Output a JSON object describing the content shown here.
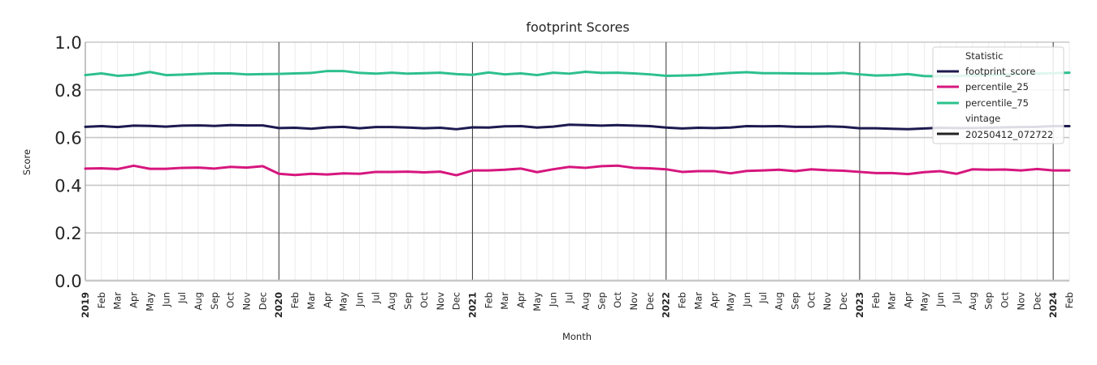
{
  "chart_data": {
    "type": "line",
    "title": "footprint Scores",
    "xlabel": "Month",
    "ylabel": "Score",
    "ylim": [
      0,
      1
    ],
    "yticks": [
      "0.0",
      "0.2",
      "0.4",
      "0.6",
      "0.8",
      "1.0"
    ],
    "grid": true,
    "legend_placement": "top-right",
    "x_tick_labels": [
      "2019",
      "Feb",
      "Mar",
      "Apr",
      "May",
      "Jun",
      "Jul",
      "Aug",
      "Sep",
      "Oct",
      "Nov",
      "Dec",
      "2020",
      "Feb",
      "Mar",
      "Apr",
      "May",
      "Jun",
      "Jul",
      "Aug",
      "Sep",
      "Oct",
      "Nov",
      "Dec",
      "2021",
      "Feb",
      "Mar",
      "Apr",
      "May",
      "Jun",
      "Jul",
      "Aug",
      "Sep",
      "Oct",
      "Nov",
      "Dec",
      "2022",
      "Feb",
      "Mar",
      "Apr",
      "May",
      "Jun",
      "Jul",
      "Aug",
      "Sep",
      "Oct",
      "Nov",
      "Dec",
      "2023",
      "Feb",
      "Mar",
      "Apr",
      "May",
      "Jun",
      "Jul",
      "Aug",
      "Sep",
      "Oct",
      "Nov",
      "Dec",
      "2024",
      "Feb"
    ],
    "year_labels": [
      "2019",
      "2020",
      "2021",
      "2022",
      "2023",
      "2024"
    ],
    "x": [
      "2019-01",
      "2019-02",
      "2019-03",
      "2019-04",
      "2019-05",
      "2019-06",
      "2019-07",
      "2019-08",
      "2019-09",
      "2019-10",
      "2019-11",
      "2019-12",
      "2020-01",
      "2020-02",
      "2020-03",
      "2020-04",
      "2020-05",
      "2020-06",
      "2020-07",
      "2020-08",
      "2020-09",
      "2020-10",
      "2020-11",
      "2020-12",
      "2021-01",
      "2021-02",
      "2021-03",
      "2021-04",
      "2021-05",
      "2021-06",
      "2021-07",
      "2021-08",
      "2021-09",
      "2021-10",
      "2021-11",
      "2021-12",
      "2022-01",
      "2022-02",
      "2022-03",
      "2022-04",
      "2022-05",
      "2022-06",
      "2022-07",
      "2022-08",
      "2022-09",
      "2022-10",
      "2022-11",
      "2022-12",
      "2023-01",
      "2023-02",
      "2023-03",
      "2023-04",
      "2023-05",
      "2023-06",
      "2023-07",
      "2023-08",
      "2023-09",
      "2023-10",
      "2023-11",
      "2023-12",
      "2024-01",
      "2024-02"
    ],
    "series": [
      {
        "name": "footprint_score",
        "color": "#1c1a4f",
        "values": [
          0.645,
          0.648,
          0.644,
          0.65,
          0.649,
          0.646,
          0.65,
          0.651,
          0.649,
          0.652,
          0.651,
          0.651,
          0.64,
          0.641,
          0.637,
          0.643,
          0.645,
          0.639,
          0.644,
          0.644,
          0.642,
          0.639,
          0.641,
          0.635,
          0.643,
          0.642,
          0.647,
          0.648,
          0.642,
          0.646,
          0.654,
          0.652,
          0.65,
          0.652,
          0.65,
          0.648,
          0.642,
          0.638,
          0.641,
          0.64,
          0.642,
          0.648,
          0.647,
          0.648,
          0.645,
          0.645,
          0.647,
          0.645,
          0.639,
          0.639,
          0.637,
          0.635,
          0.638,
          0.641,
          0.64,
          0.64,
          0.641,
          0.643,
          0.644,
          0.645,
          0.648,
          0.648
        ]
      },
      {
        "name": "percentile_25",
        "color": "#d6167e",
        "values": [
          0.47,
          0.471,
          0.468,
          0.482,
          0.469,
          0.469,
          0.473,
          0.474,
          0.47,
          0.477,
          0.474,
          0.48,
          0.448,
          0.443,
          0.448,
          0.445,
          0.45,
          0.448,
          0.456,
          0.456,
          0.457,
          0.454,
          0.457,
          0.442,
          0.462,
          0.462,
          0.465,
          0.47,
          0.455,
          0.467,
          0.477,
          0.473,
          0.48,
          0.482,
          0.473,
          0.471,
          0.467,
          0.456,
          0.459,
          0.459,
          0.45,
          0.46,
          0.462,
          0.465,
          0.459,
          0.467,
          0.463,
          0.461,
          0.456,
          0.451,
          0.451,
          0.447,
          0.455,
          0.459,
          0.448,
          0.467,
          0.465,
          0.466,
          0.462,
          0.468,
          0.462,
          0.462
        ]
      },
      {
        "name": "percentile_75",
        "color": "#2dc08d",
        "values": [
          0.862,
          0.869,
          0.859,
          0.863,
          0.875,
          0.862,
          0.864,
          0.867,
          0.869,
          0.869,
          0.865,
          0.866,
          0.867,
          0.869,
          0.871,
          0.879,
          0.879,
          0.871,
          0.868,
          0.872,
          0.868,
          0.87,
          0.872,
          0.866,
          0.863,
          0.873,
          0.865,
          0.869,
          0.862,
          0.872,
          0.868,
          0.876,
          0.871,
          0.872,
          0.869,
          0.865,
          0.859,
          0.86,
          0.862,
          0.867,
          0.871,
          0.874,
          0.87,
          0.87,
          0.869,
          0.868,
          0.868,
          0.871,
          0.865,
          0.86,
          0.862,
          0.866,
          0.858,
          0.857,
          0.858,
          0.86,
          0.862,
          0.864,
          0.866,
          0.868,
          0.87,
          0.872
        ]
      }
    ],
    "legend": {
      "title": "Statistic",
      "entries": [
        {
          "label": "footprint_score",
          "color": "#1c1a4f"
        },
        {
          "label": "percentile_25",
          "color": "#d6167e"
        },
        {
          "label": "percentile_75",
          "color": "#2dc08d"
        }
      ],
      "subtitle": "vintage",
      "vintage_entry": {
        "label": "20250412_072722",
        "color": "#222222"
      }
    }
  }
}
